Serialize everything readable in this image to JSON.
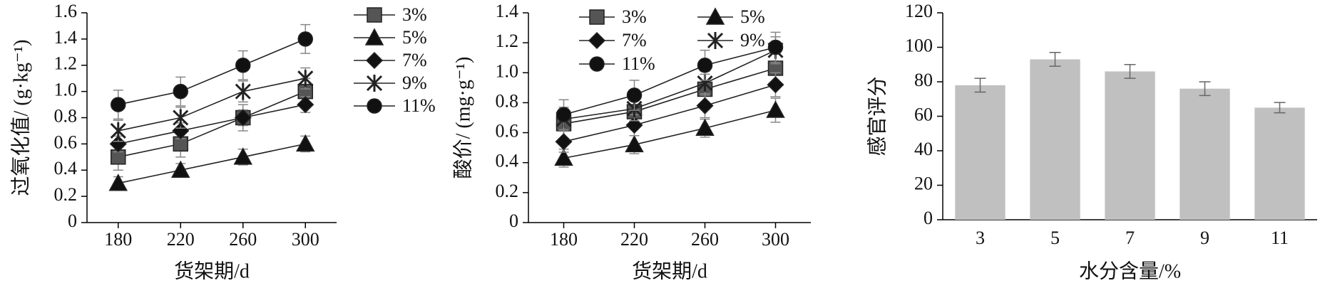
{
  "chart_data": [
    {
      "type": "line",
      "xlabel": "货架期/d",
      "ylabel": "过氧化值/ (g·kg⁻¹)",
      "x": [
        180,
        220,
        260,
        300
      ],
      "xlim": [
        160,
        320
      ],
      "xticks": [
        180,
        220,
        260,
        300
      ],
      "ylim": [
        0,
        1.6
      ],
      "yticks": [
        0,
        0.2,
        0.4,
        0.6,
        0.8,
        {
          "value": 1,
          "label": "1.0"
        },
        1.2,
        1.4,
        1.6
      ],
      "legend": "right",
      "series": [
        {
          "name": "3%",
          "marker": "square",
          "color": "#222222",
          "values": [
            0.5,
            0.6,
            0.8,
            1.0
          ],
          "errors": [
            0.1,
            0.1,
            0.1,
            0.1
          ]
        },
        {
          "name": "5%",
          "marker": "triangle",
          "color": "#222222",
          "values": [
            0.3,
            0.4,
            0.5,
            0.6
          ],
          "errors": [
            0.05,
            0.05,
            0.06,
            0.06
          ]
        },
        {
          "name": "7%",
          "marker": "diamond",
          "color": "#222222",
          "values": [
            0.6,
            0.7,
            0.8,
            0.9
          ],
          "errors": [
            0.06,
            0.06,
            0.06,
            0.06
          ]
        },
        {
          "name": "9%",
          "marker": "star",
          "color": "#222222",
          "values": [
            0.7,
            0.8,
            1.0,
            1.1
          ],
          "errors": [
            0.08,
            0.08,
            0.08,
            0.08
          ]
        },
        {
          "name": "11%",
          "marker": "circle",
          "color": "#222222",
          "values": [
            0.9,
            1.0,
            1.2,
            1.4
          ],
          "errors": [
            0.11,
            0.11,
            0.11,
            0.11
          ]
        }
      ]
    },
    {
      "type": "line",
      "xlabel": "货架期/d",
      "ylabel": "酸价/ (mg·g⁻¹)",
      "x": [
        180,
        220,
        260,
        300
      ],
      "xlim": [
        160,
        320
      ],
      "xticks": [
        180,
        220,
        260,
        300
      ],
      "ylim": [
        0,
        1.4
      ],
      "yticks": [
        0,
        0.2,
        0.4,
        0.6,
        0.8,
        {
          "value": 1,
          "label": "1.0"
        },
        1.2,
        1.4
      ],
      "legend": "upper left",
      "series": [
        {
          "name": "3%",
          "marker": "square",
          "color": "#222222",
          "values": [
            0.66,
            0.74,
            0.89,
            1.03
          ],
          "errors": [
            0.1,
            0.1,
            0.1,
            0.1
          ]
        },
        {
          "name": "5%",
          "marker": "triangle",
          "color": "#222222",
          "values": [
            0.43,
            0.52,
            0.63,
            0.75
          ],
          "errors": [
            0.06,
            0.06,
            0.06,
            0.08
          ]
        },
        {
          "name": "7%",
          "marker": "diamond",
          "color": "#222222",
          "values": [
            0.54,
            0.65,
            0.78,
            0.92
          ],
          "errors": [
            0.07,
            0.07,
            0.08,
            0.08
          ]
        },
        {
          "name": "9%",
          "marker": "star",
          "color": "#222222",
          "values": [
            0.69,
            0.76,
            0.93,
            1.15
          ],
          "errors": [
            0.08,
            0.08,
            0.08,
            0.09
          ]
        },
        {
          "name": "11%",
          "marker": "circle",
          "color": "#222222",
          "values": [
            0.72,
            0.85,
            1.05,
            1.17
          ],
          "errors": [
            0.1,
            0.1,
            0.1,
            0.1
          ]
        }
      ]
    },
    {
      "type": "bar",
      "xlabel": "水分含量/%",
      "ylabel": "感官评分",
      "categories": [
        "3",
        "5",
        "7",
        "9",
        "11"
      ],
      "values": [
        78,
        93,
        86,
        76,
        65
      ],
      "errors": [
        4,
        4,
        4,
        4,
        3
      ],
      "color": "#c0c0c0",
      "ylim": [
        0,
        120
      ],
      "yticks": [
        0,
        20,
        40,
        60,
        80,
        100,
        120
      ]
    }
  ]
}
